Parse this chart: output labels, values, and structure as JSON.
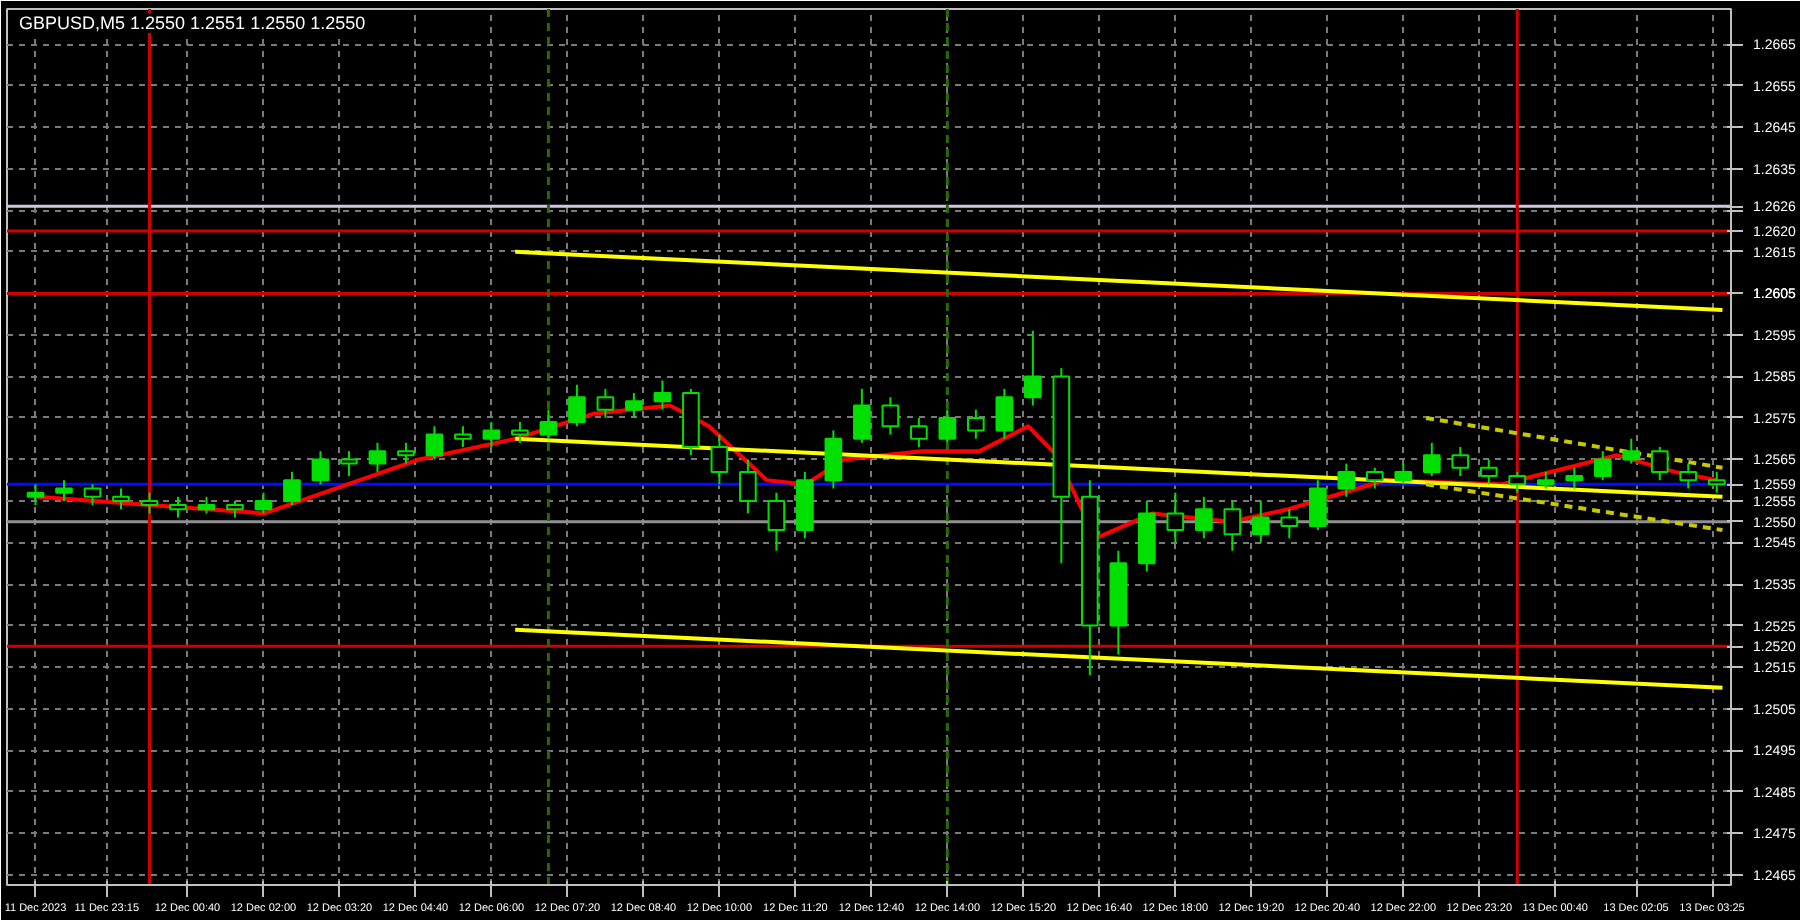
{
  "chart_data": {
    "type": "candlestick",
    "title": "GBPUSD,M5  1.2550 1.2551 1.2550 1.2550",
    "color": "#00e000",
    "x": [
      "2023-12-11T22:00",
      "2023-12-11T22:30",
      "2023-12-11T23:00",
      "2023-12-11T23:30",
      "2023-12-12T00:00",
      "2023-12-12T00:30",
      "2023-12-12T01:00",
      "2023-12-12T01:30",
      "2023-12-12T02:00",
      "2023-12-12T02:30",
      "2023-12-12T03:00",
      "2023-12-12T03:30",
      "2023-12-12T04:00",
      "2023-12-12T04:30",
      "2023-12-12T05:00",
      "2023-12-12T05:30",
      "2023-12-12T06:00",
      "2023-12-12T06:30",
      "2023-12-12T07:00",
      "2023-12-12T07:30",
      "2023-12-12T08:00",
      "2023-12-12T08:30",
      "2023-12-12T09:00",
      "2023-12-12T09:30",
      "2023-12-12T10:00",
      "2023-12-12T10:30",
      "2023-12-12T11:00",
      "2023-12-12T11:30",
      "2023-12-12T12:00",
      "2023-12-12T12:30",
      "2023-12-12T13:00",
      "2023-12-12T13:30",
      "2023-12-12T14:00",
      "2023-12-12T14:30",
      "2023-12-12T15:00",
      "2023-12-12T15:30",
      "2023-12-12T16:00",
      "2023-12-12T16:30",
      "2023-12-12T17:00",
      "2023-12-12T17:30",
      "2023-12-12T18:00",
      "2023-12-12T18:30",
      "2023-12-12T19:00",
      "2023-12-12T19:30",
      "2023-12-12T20:00",
      "2023-12-12T20:30",
      "2023-12-12T21:00",
      "2023-12-12T21:30",
      "2023-12-12T22:00",
      "2023-12-12T22:30",
      "2023-12-12T23:00",
      "2023-12-12T23:30",
      "2023-12-13T00:00",
      "2023-12-13T00:30",
      "2023-12-13T01:00",
      "2023-12-13T01:30",
      "2023-12-13T02:00",
      "2023-12-13T02:30",
      "2023-12-13T03:00",
      "2023-12-13T03:30"
    ],
    "ohlc": [
      [
        1.2556,
        1.2559,
        1.2554,
        1.2557
      ],
      [
        1.2557,
        1.256,
        1.2555,
        1.2558
      ],
      [
        1.2558,
        1.2559,
        1.2554,
        1.2556
      ],
      [
        1.2556,
        1.2558,
        1.2553,
        1.2555
      ],
      [
        1.2555,
        1.2557,
        1.2552,
        1.2554
      ],
      [
        1.2554,
        1.2556,
        1.2551,
        1.2553
      ],
      [
        1.2553,
        1.2556,
        1.2552,
        1.2554
      ],
      [
        1.2554,
        1.2555,
        1.2551,
        1.2553
      ],
      [
        1.2553,
        1.2557,
        1.2552,
        1.2555
      ],
      [
        1.2555,
        1.2562,
        1.2554,
        1.256
      ],
      [
        1.256,
        1.2567,
        1.2559,
        1.2565
      ],
      [
        1.2565,
        1.2567,
        1.2561,
        1.2564
      ],
      [
        1.2564,
        1.2569,
        1.2562,
        1.2567
      ],
      [
        1.2567,
        1.2569,
        1.2564,
        1.2566
      ],
      [
        1.2566,
        1.2573,
        1.2565,
        1.2571
      ],
      [
        1.2571,
        1.2573,
        1.2568,
        1.257
      ],
      [
        1.257,
        1.2574,
        1.2568,
        1.2572
      ],
      [
        1.2572,
        1.2574,
        1.2569,
        1.2571
      ],
      [
        1.2571,
        1.2577,
        1.257,
        1.2574
      ],
      [
        1.2574,
        1.2583,
        1.2573,
        1.258
      ],
      [
        1.258,
        1.2582,
        1.2575,
        1.2577
      ],
      [
        1.2577,
        1.2581,
        1.2575,
        1.2579
      ],
      [
        1.2579,
        1.2584,
        1.2577,
        1.2581
      ],
      [
        1.2581,
        1.2582,
        1.2566,
        1.2568
      ],
      [
        1.2568,
        1.2571,
        1.2559,
        1.2562
      ],
      [
        1.2562,
        1.2565,
        1.2552,
        1.2555
      ],
      [
        1.2555,
        1.2557,
        1.2543,
        1.2548
      ],
      [
        1.2548,
        1.2562,
        1.2546,
        1.256
      ],
      [
        1.256,
        1.2572,
        1.2558,
        1.257
      ],
      [
        1.257,
        1.2582,
        1.2569,
        1.2578
      ],
      [
        1.2578,
        1.258,
        1.2571,
        1.2573
      ],
      [
        1.2573,
        1.2575,
        1.2568,
        1.257
      ],
      [
        1.257,
        1.2577,
        1.2569,
        1.2575
      ],
      [
        1.2575,
        1.2577,
        1.257,
        1.2572
      ],
      [
        1.2572,
        1.2582,
        1.257,
        1.258
      ],
      [
        1.258,
        1.2596,
        1.2578,
        1.2585
      ],
      [
        1.2585,
        1.2587,
        1.254,
        1.2556
      ],
      [
        1.2556,
        1.256,
        1.2513,
        1.2525
      ],
      [
        1.2525,
        1.2543,
        1.2518,
        1.254
      ],
      [
        1.254,
        1.2555,
        1.2538,
        1.2552
      ],
      [
        1.2552,
        1.2557,
        1.2545,
        1.2548
      ],
      [
        1.2548,
        1.2556,
        1.2546,
        1.2553
      ],
      [
        1.2553,
        1.2555,
        1.2543,
        1.2547
      ],
      [
        1.2547,
        1.2555,
        1.2545,
        1.2551
      ],
      [
        1.2551,
        1.2553,
        1.2546,
        1.2549
      ],
      [
        1.2549,
        1.256,
        1.2548,
        1.2558
      ],
      [
        1.2558,
        1.2564,
        1.2556,
        1.2562
      ],
      [
        1.2562,
        1.2563,
        1.2558,
        1.256
      ],
      [
        1.256,
        1.2564,
        1.2559,
        1.2562
      ],
      [
        1.2562,
        1.2569,
        1.2561,
        1.2566
      ],
      [
        1.2566,
        1.2568,
        1.2561,
        1.2563
      ],
      [
        1.2563,
        1.2565,
        1.2559,
        1.2561
      ],
      [
        1.2561,
        1.2562,
        1.2557,
        1.2559
      ],
      [
        1.2559,
        1.2562,
        1.2558,
        1.256
      ],
      [
        1.256,
        1.2563,
        1.2558,
        1.2561
      ],
      [
        1.2561,
        1.2567,
        1.256,
        1.2565
      ],
      [
        1.2565,
        1.257,
        1.2564,
        1.2567
      ],
      [
        1.2567,
        1.2568,
        1.256,
        1.2562
      ],
      [
        1.2562,
        1.2564,
        1.2558,
        1.256
      ],
      [
        1.256,
        1.2562,
        1.2557,
        1.2559
      ]
    ],
    "series": [
      {
        "type": "line",
        "color": "#ff0000",
        "line_style": "solid",
        "x": [
          "2023-12-11T22:02",
          "2023-12-12T02:01",
          "2023-12-12T04:44",
          "2023-12-12T06:26",
          "2023-12-12T07:47",
          "2023-12-12T09:08",
          "2023-12-12T09:49",
          "2023-12-12T10:50",
          "2023-12-12T11:31",
          "2023-12-12T12:11",
          "2023-12-12T13:33",
          "2023-12-12T14:34",
          "2023-12-12T15:25",
          "2023-12-12T15:55",
          "2023-12-12T16:36",
          "2023-12-12T17:36",
          "2023-12-12T18:58",
          "2023-12-12T19:59",
          "2023-12-12T21:41",
          "2023-12-12T23:43",
          "2023-12-13T01:45",
          "2023-12-13T02:46",
          "2023-12-13T03:30"
        ],
        "values": [
          1.2556,
          1.2552,
          1.2565,
          1.257,
          1.2576,
          1.2578,
          1.2573,
          1.256,
          1.2559,
          1.2565,
          1.2567,
          1.2567,
          1.2573,
          1.2566,
          1.2546,
          1.2552,
          1.255,
          1.2553,
          1.256,
          1.2559,
          1.2566,
          1.2562,
          1.256
        ]
      },
      {
        "type": "line",
        "color": "#ffff00",
        "line_style": "solid",
        "x": [
          "2023-12-12T06:25",
          "2023-12-13T03:36"
        ],
        "values": [
          1.2615,
          1.2601
        ]
      },
      {
        "type": "line",
        "color": "#ffff00",
        "line_style": "solid",
        "x": [
          "2023-12-12T06:25",
          "2023-12-13T03:36"
        ],
        "values": [
          1.257,
          1.2556
        ]
      },
      {
        "type": "line",
        "color": "#ffff00",
        "line_style": "solid",
        "x": [
          "2023-12-12T06:25",
          "2023-12-13T03:36"
        ],
        "values": [
          1.2524,
          1.251
        ]
      },
      {
        "type": "line",
        "color": "#c8c800",
        "line_style": "dashed",
        "x": [
          "2023-12-12T22:24",
          "2023-12-13T03:36"
        ],
        "values": [
          1.2575,
          1.2563
        ]
      },
      {
        "type": "line",
        "color": "#c8c800",
        "line_style": "dashed",
        "x": [
          "2023-12-12T22:24",
          "2023-12-13T03:36"
        ],
        "values": [
          1.2559,
          1.2548
        ]
      }
    ],
    "ref_lines": [
      {
        "axis": "y",
        "value": 1.2626,
        "label": "1.2626",
        "color": "#d0c8e0"
      },
      {
        "axis": "y",
        "value": 1.262,
        "label": "1.2620",
        "color": "#d00000"
      },
      {
        "axis": "y",
        "value": 1.2605,
        "label": "1.2605",
        "color": "#d00000"
      },
      {
        "axis": "y",
        "value": 1.2559,
        "label": "1.2559",
        "color": "#0010ff"
      },
      {
        "axis": "y",
        "value": 1.255,
        "label": "1.2550",
        "color": "#909090"
      },
      {
        "axis": "y",
        "value": 1.252,
        "label": "1.2520",
        "color": "#d00000"
      },
      {
        "axis": "x",
        "value": "2023-12-12T00:00",
        "color": "#d00000",
        "line_style": "solid"
      },
      {
        "axis": "x",
        "value": "2023-12-13T00:00",
        "color": "#d00000",
        "line_style": "solid"
      },
      {
        "axis": "x",
        "value": "2023-12-12T07:00",
        "color": "#2a6a00",
        "line_style": "dashed"
      },
      {
        "axis": "x",
        "value": "2023-12-12T14:00",
        "color": "#2a6a00",
        "line_style": "dashed"
      }
    ],
    "xlim": [
      "2023-12-11T21:30",
      "2023-12-13T03:45"
    ],
    "xticks": [
      {
        "value": "2023-12-11T22:00",
        "label": "11 Dec 2023"
      },
      {
        "value": "2023-12-11T23:15",
        "label": "11 Dec 23:15"
      },
      {
        "value": "2023-12-12T00:40",
        "label": "12 Dec 00:40"
      },
      {
        "value": "2023-12-12T02:00",
        "label": "12 Dec 02:00"
      },
      {
        "value": "2023-12-12T03:20",
        "label": "12 Dec 03:20"
      },
      {
        "value": "2023-12-12T04:40",
        "label": "12 Dec 04:40"
      },
      {
        "value": "2023-12-12T06:00",
        "label": "12 Dec 06:00"
      },
      {
        "value": "2023-12-12T07:20",
        "label": "12 Dec 07:20"
      },
      {
        "value": "2023-12-12T08:40",
        "label": "12 Dec 08:40"
      },
      {
        "value": "2023-12-12T10:00",
        "label": "12 Dec 10:00"
      },
      {
        "value": "2023-12-12T11:20",
        "label": "12 Dec 11:20"
      },
      {
        "value": "2023-12-12T12:40",
        "label": "12 Dec 12:40"
      },
      {
        "value": "2023-12-12T14:00",
        "label": "12 Dec 14:00"
      },
      {
        "value": "2023-12-12T15:20",
        "label": "12 Dec 15:20"
      },
      {
        "value": "2023-12-12T16:40",
        "label": "12 Dec 16:40"
      },
      {
        "value": "2023-12-12T18:00",
        "label": "12 Dec 18:00"
      },
      {
        "value": "2023-12-12T19:20",
        "label": "12 Dec 19:20"
      },
      {
        "value": "2023-12-12T20:40",
        "label": "12 Dec 20:40"
      },
      {
        "value": "2023-12-12T22:00",
        "label": "12 Dec 22:00"
      },
      {
        "value": "2023-12-12T23:20",
        "label": "12 Dec 23:20"
      },
      {
        "value": "2023-12-13T00:40",
        "label": "13 Dec 00:40"
      },
      {
        "value": "2023-12-13T02:05",
        "label": "13 Dec 02:05"
      },
      {
        "value": "2023-12-13T03:25",
        "label": "13 Dec 03:25"
      }
    ],
    "ylim": [
      1.24625,
      1.26735
    ],
    "yticks": [
      1.2465,
      1.2475,
      1.2485,
      1.2495,
      1.2505,
      1.2515,
      1.2525,
      1.2535,
      1.2545,
      1.2555,
      1.2565,
      1.2575,
      1.2585,
      1.2595,
      {
        "value": 1.2605,
        "label": null
      },
      1.2615,
      {
        "value": 1.2625,
        "label": null
      },
      1.2635,
      1.2645,
      1.2655,
      1.2665
    ],
    "grid": true
  }
}
